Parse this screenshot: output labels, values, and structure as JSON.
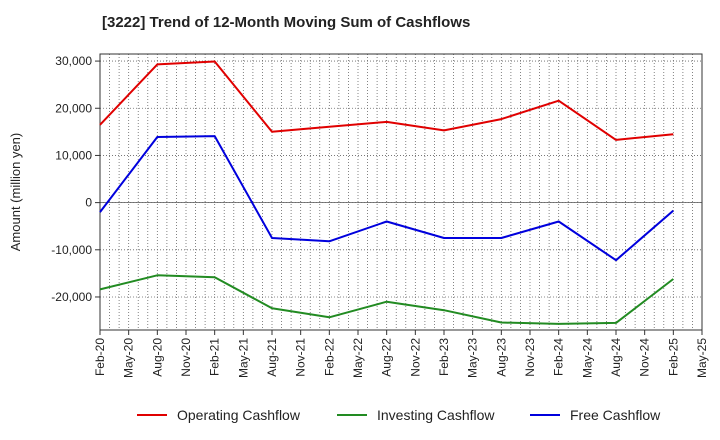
{
  "chart_data": {
    "type": "line",
    "title": "[3222]  Trend of 12-Month Moving Sum of Cashflows",
    "xlabel": "",
    "ylabel": "Amount (million yen)",
    "ylim": [
      -27000,
      31500
    ],
    "yticks": [
      30000,
      20000,
      10000,
      0,
      -10000,
      -20000
    ],
    "ytick_labels": [
      "30,000",
      "20,000",
      "10,000",
      "0",
      "-10,000",
      "-20,000"
    ],
    "x_tick_labels": [
      "Feb-20",
      "May-20",
      "Aug-20",
      "Nov-20",
      "Feb-21",
      "May-21",
      "Aug-21",
      "Nov-21",
      "Feb-22",
      "May-22",
      "Aug-22",
      "Nov-22",
      "Feb-23",
      "May-23",
      "Aug-23",
      "Nov-23",
      "Feb-24",
      "May-24",
      "Aug-24",
      "Nov-24",
      "Feb-25",
      "May-25"
    ],
    "x": [
      "Feb-20",
      "Aug-20",
      "Feb-21",
      "Aug-21",
      "Feb-22",
      "Aug-22",
      "Feb-23",
      "Aug-23",
      "Feb-24",
      "Aug-24",
      "Feb-25"
    ],
    "series": [
      {
        "name": "Operating Cashflow",
        "color": "#e00000",
        "values": [
          16500,
          29300,
          29900,
          15000,
          16100,
          17100,
          15300,
          17700,
          21600,
          13300,
          14500
        ]
      },
      {
        "name": "Investing Cashflow",
        "color": "#228b22",
        "values": [
          -18400,
          -15400,
          -15800,
          -22400,
          -24300,
          -21000,
          -22800,
          -25400,
          -25700,
          -25500,
          -16200
        ]
      },
      {
        "name": "Free Cashflow",
        "color": "#0000dd",
        "values": [
          -2000,
          13900,
          14100,
          -7500,
          -8200,
          -4000,
          -7500,
          -7500,
          -4000,
          -12200,
          -1700
        ]
      }
    ],
    "grid": true,
    "legend_position": "bottom"
  }
}
